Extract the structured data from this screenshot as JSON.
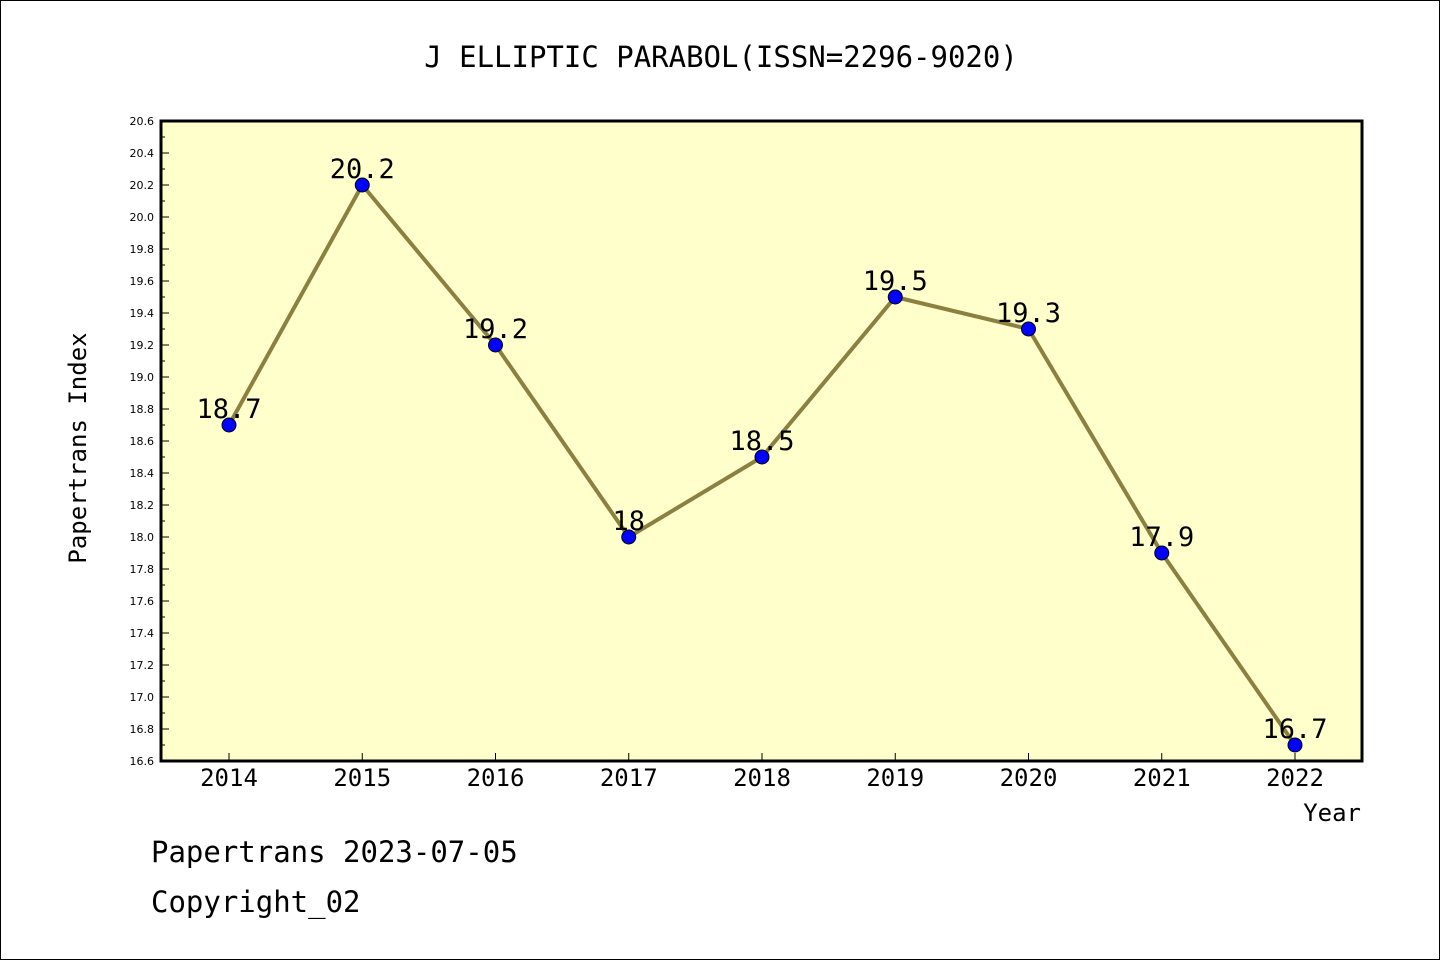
{
  "colors": {
    "plot_background": "#ffffcc",
    "line": "#8b8040",
    "marker": "#0000ff",
    "axis": "#000000"
  },
  "chart_data": {
    "type": "line",
    "title": "J ELLIPTIC PARABOL(ISSN=2296-9020)",
    "xlabel": "Year",
    "ylabel": "Papertrans Index",
    "categories": [
      "2014",
      "2015",
      "2016",
      "2017",
      "2018",
      "2019",
      "2020",
      "2021",
      "2022"
    ],
    "series": [
      {
        "values": [
          18.7,
          20.2,
          19.2,
          18.0,
          18.5,
          19.5,
          19.3,
          17.9,
          16.7
        ],
        "data_labels": [
          "18.7",
          "20.2",
          "19.2",
          "18",
          "18.5",
          "19.5",
          "19.3",
          "17.9",
          "16.7"
        ]
      }
    ],
    "ylim": [
      16.6,
      20.6
    ],
    "yticks": [
      "16.6",
      "16.8",
      "17.0",
      "17.2",
      "17.4",
      "17.6",
      "17.8",
      "18.0",
      "18.2",
      "18.4",
      "18.6",
      "18.8",
      "19.0",
      "19.2",
      "19.4",
      "19.6",
      "19.8",
      "20.0",
      "20.2",
      "20.4",
      "20.6"
    ],
    "grid": false,
    "legend": "none"
  },
  "footer": {
    "date_line": "Papertrans 2023-07-05",
    "copyright": "Copyright_02"
  }
}
